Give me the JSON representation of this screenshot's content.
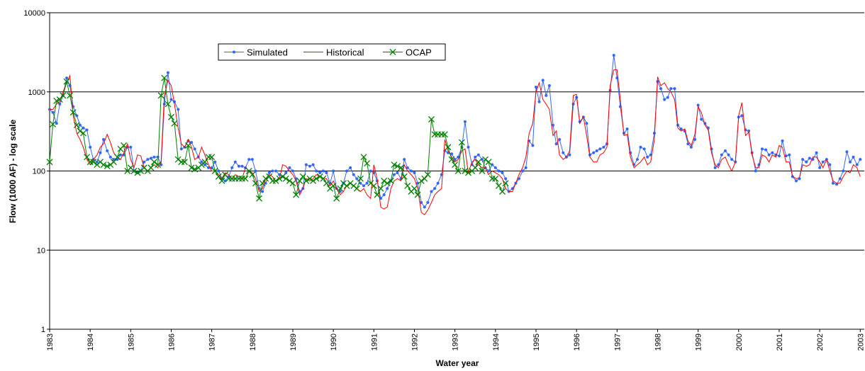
{
  "chart_data": {
    "type": "line",
    "y_label": "Flow (1000 AF) - log scale",
    "x_label": "Water year",
    "log_y": true,
    "grid": true,
    "legend": "top",
    "xlim": [
      1983,
      2003.1
    ],
    "xticks": [
      1983,
      1984,
      1985,
      1986,
      1987,
      1988,
      1989,
      1990,
      1991,
      1992,
      1993,
      1994,
      1995,
      1996,
      1997,
      1998,
      1999,
      2000,
      2001,
      2002,
      2003
    ],
    "ylim": [
      1,
      10000
    ],
    "yticks": [
      1,
      10,
      100,
      1000,
      10000
    ],
    "x": [
      1983,
      1983.08,
      1983.17,
      1983.25,
      1983.33,
      1983.42,
      1983.5,
      1983.58,
      1983.67,
      1983.75,
      1983.83,
      1983.92,
      1984,
      1984.08,
      1984.17,
      1984.25,
      1984.33,
      1984.42,
      1984.5,
      1984.58,
      1984.67,
      1984.75,
      1984.83,
      1984.92,
      1985,
      1985.08,
      1985.17,
      1985.25,
      1985.33,
      1985.42,
      1985.5,
      1985.58,
      1985.67,
      1985.75,
      1985.83,
      1985.92,
      1986,
      1986.08,
      1986.17,
      1986.25,
      1986.33,
      1986.42,
      1986.5,
      1986.58,
      1986.67,
      1986.75,
      1986.83,
      1986.92,
      1987,
      1987.08,
      1987.17,
      1987.25,
      1987.33,
      1987.42,
      1987.5,
      1987.58,
      1987.67,
      1987.75,
      1987.83,
      1987.92,
      1988,
      1988.08,
      1988.17,
      1988.25,
      1988.33,
      1988.42,
      1988.5,
      1988.58,
      1988.67,
      1988.75,
      1988.83,
      1988.92,
      1989,
      1989.08,
      1989.17,
      1989.25,
      1989.33,
      1989.42,
      1989.5,
      1989.58,
      1989.67,
      1989.75,
      1989.83,
      1989.92,
      1990,
      1990.08,
      1990.17,
      1990.25,
      1990.33,
      1990.42,
      1990.5,
      1990.58,
      1990.67,
      1990.75,
      1990.83,
      1990.92,
      1991,
      1991.08,
      1991.17,
      1991.25,
      1991.33,
      1991.42,
      1991.5,
      1991.58,
      1991.67,
      1991.75,
      1991.83,
      1991.92,
      1992,
      1992.08,
      1992.17,
      1992.25,
      1992.33,
      1992.42,
      1992.5,
      1992.58,
      1992.67,
      1992.75,
      1992.83,
      1992.92,
      1993,
      1993.08,
      1993.17,
      1993.25,
      1993.33,
      1993.42,
      1993.5,
      1993.58,
      1993.67,
      1993.75,
      1993.83,
      1993.92,
      1994,
      1994.08,
      1994.17,
      1994.25,
      1994.33,
      1994.42,
      1994.5,
      1994.58,
      1994.67,
      1994.75,
      1994.83,
      1994.92,
      1995,
      1995.08,
      1995.17,
      1995.25,
      1995.33,
      1995.42,
      1995.5,
      1995.58,
      1995.67,
      1995.75,
      1995.83,
      1995.92,
      1996,
      1996.08,
      1996.17,
      1996.25,
      1996.33,
      1996.42,
      1996.5,
      1996.58,
      1996.67,
      1996.75,
      1996.83,
      1996.92,
      1997,
      1997.08,
      1997.17,
      1997.25,
      1997.33,
      1997.42,
      1997.5,
      1997.58,
      1997.67,
      1997.75,
      1997.83,
      1997.92,
      1998,
      1998.08,
      1998.17,
      1998.25,
      1998.33,
      1998.42,
      1998.5,
      1998.58,
      1998.67,
      1998.75,
      1998.83,
      1998.92,
      1999,
      1999.08,
      1999.17,
      1999.25,
      1999.33,
      1999.42,
      1999.5,
      1999.58,
      1999.67,
      1999.75,
      1999.83,
      1999.92,
      2000,
      2000.08,
      2000.17,
      2000.25,
      2000.33,
      2000.42,
      2000.5,
      2000.58,
      2000.67,
      2000.75,
      2000.83,
      2000.92,
      2001,
      2001.08,
      2001.17,
      2001.25,
      2001.33,
      2001.42,
      2001.5,
      2001.58,
      2001.67,
      2001.75,
      2001.83,
      2001.92,
      2002,
      2002.08,
      2002.17,
      2002.25,
      2002.33,
      2002.42,
      2002.5,
      2002.58,
      2002.67,
      2002.75,
      2002.83,
      2002.92,
      2003
    ],
    "series": [
      {
        "name": "Simulated",
        "color": "#3366ff",
        "marker": "circle",
        "values": [
          600,
          550,
          400,
          700,
          900,
          1500,
          1200,
          650,
          500,
          380,
          350,
          330,
          200,
          140,
          130,
          170,
          250,
          180,
          150,
          140,
          140,
          160,
          160,
          200,
          200,
          100,
          95,
          100,
          130,
          140,
          145,
          150,
          150,
          120,
          700,
          1750,
          800,
          750,
          600,
          190,
          200,
          240,
          230,
          190,
          150,
          130,
          120,
          110,
          110,
          130,
          100,
          80,
          75,
          85,
          110,
          130,
          115,
          115,
          110,
          140,
          140,
          100,
          60,
          55,
          70,
          95,
          100,
          100,
          90,
          85,
          95,
          110,
          100,
          80,
          55,
          60,
          120,
          115,
          120,
          100,
          95,
          100,
          95,
          70,
          100,
          60,
          55,
          70,
          100,
          110,
          90,
          80,
          70,
          65,
          70,
          100,
          95,
          75,
          45,
          50,
          60,
          75,
          90,
          95,
          80,
          140,
          110,
          100,
          95,
          70,
          40,
          35,
          40,
          55,
          60,
          70,
          90,
          180,
          170,
          165,
          140,
          150,
          200,
          420,
          200,
          120,
          150,
          160,
          140,
          110,
          100,
          120,
          110,
          100,
          95,
          80,
          55,
          60,
          70,
          80,
          100,
          110,
          240,
          210,
          1150,
          750,
          1400,
          900,
          1200,
          380,
          220,
          250,
          170,
          150,
          160,
          700,
          850,
          420,
          480,
          400,
          160,
          170,
          180,
          190,
          200,
          220,
          1050,
          2900,
          1500,
          650,
          300,
          340,
          170,
          120,
          140,
          200,
          190,
          150,
          160,
          300,
          1350,
          1100,
          800,
          850,
          1100,
          1100,
          380,
          340,
          320,
          220,
          200,
          250,
          680,
          450,
          400,
          350,
          190,
          110,
          120,
          160,
          180,
          160,
          140,
          130,
          480,
          500,
          330,
          320,
          170,
          100,
          120,
          190,
          185,
          160,
          170,
          160,
          155,
          240,
          155,
          160,
          85,
          75,
          80,
          140,
          130,
          145,
          140,
          170,
          110,
          130,
          140,
          120,
          70,
          68,
          80,
          100,
          175,
          130,
          150,
          120,
          140
        ]
      },
      {
        "name": "Historical",
        "color": "#ff0000",
        "marker": "none",
        "values": [
          600,
          600,
          700,
          750,
          1000,
          1300,
          1600,
          500,
          300,
          250,
          200,
          140,
          120,
          140,
          160,
          200,
          220,
          290,
          230,
          170,
          150,
          140,
          170,
          220,
          140,
          110,
          160,
          155,
          110,
          100,
          110,
          120,
          110,
          130,
          900,
          1400,
          1200,
          700,
          350,
          220,
          200,
          250,
          200,
          140,
          150,
          200,
          160,
          120,
          100,
          100,
          90,
          80,
          95,
          90,
          80,
          90,
          85,
          80,
          110,
          100,
          95,
          80,
          55,
          60,
          80,
          90,
          85,
          75,
          80,
          120,
          115,
          100,
          90,
          75,
          50,
          60,
          80,
          75,
          80,
          90,
          85,
          80,
          80,
          65,
          75,
          60,
          50,
          55,
          65,
          70,
          65,
          60,
          55,
          60,
          50,
          45,
          120,
          80,
          35,
          33,
          35,
          60,
          75,
          80,
          75,
          120,
          100,
          90,
          80,
          60,
          30,
          28,
          32,
          40,
          50,
          55,
          60,
          250,
          180,
          150,
          130,
          140,
          180,
          190,
          95,
          130,
          140,
          120,
          110,
          110,
          90,
          100,
          95,
          90,
          80,
          60,
          55,
          55,
          70,
          90,
          110,
          150,
          300,
          400,
          1000,
          1300,
          800,
          700,
          600,
          280,
          320,
          160,
          140,
          150,
          180,
          900,
          930,
          400,
          480,
          280,
          150,
          130,
          130,
          160,
          170,
          200,
          1200,
          1900,
          1900,
          800,
          280,
          290,
          150,
          110,
          120,
          130,
          150,
          120,
          130,
          250,
          1550,
          1200,
          1300,
          1100,
          1000,
          800,
          350,
          320,
          340,
          240,
          210,
          290,
          650,
          550,
          380,
          330,
          170,
          120,
          110,
          140,
          150,
          120,
          100,
          130,
          500,
          730,
          280,
          310,
          160,
          110,
          110,
          160,
          150,
          130,
          160,
          150,
          210,
          200,
          130,
          130,
          85,
          80,
          82,
          120,
          115,
          120,
          150,
          150,
          130,
          110,
          140,
          100,
          75,
          70,
          70,
          85,
          100,
          95,
          120,
          110,
          85
        ]
      },
      {
        "name": "OCAP",
        "color": "#008000",
        "marker": "x",
        "values": [
          130,
          390,
          770,
          800,
          900,
          1350,
          900,
          550,
          380,
          320,
          300,
          150,
          130,
          130,
          120,
          130,
          120,
          115,
          120,
          130,
          150,
          190,
          210,
          100,
          110,
          100,
          95,
          100,
          110,
          100,
          110,
          130,
          120,
          900,
          1500,
          700,
          480,
          400,
          140,
          130,
          130,
          210,
          110,
          105,
          110,
          120,
          130,
          150,
          150,
          100,
          85,
          75,
          90,
          80,
          80,
          80,
          80,
          80,
          80,
          100,
          90,
          70,
          45,
          70,
          80,
          85,
          75,
          75,
          80,
          85,
          80,
          75,
          70,
          50,
          75,
          85,
          75,
          80,
          75,
          80,
          85,
          80,
          70,
          60,
          65,
          45,
          60,
          70,
          65,
          70,
          65,
          60,
          80,
          150,
          125,
          70,
          65,
          50,
          60,
          75,
          70,
          75,
          120,
          115,
          110,
          85,
          65,
          55,
          60,
          50,
          75,
          80,
          90,
          450,
          290,
          290,
          290,
          290,
          200,
          140,
          120,
          100,
          230,
          100,
          95,
          100,
          110,
          130,
          100,
          140,
          130,
          80,
          80,
          65,
          55,
          70,
          null,
          null,
          null,
          null,
          null,
          null,
          null,
          null,
          null,
          null,
          null,
          null,
          null,
          null,
          null,
          null,
          null,
          null,
          null,
          null,
          null,
          null,
          null,
          null,
          null,
          null,
          null,
          null,
          null,
          null,
          null,
          null,
          null,
          null,
          null,
          null,
          null,
          null,
          null,
          null,
          null,
          null,
          null,
          null,
          null,
          null,
          null,
          null,
          null,
          null,
          null,
          null,
          null,
          null,
          null,
          null,
          null,
          null,
          null,
          null,
          null,
          null,
          null,
          null,
          null,
          null,
          null,
          null,
          null,
          null,
          null,
          null,
          null,
          null,
          null,
          null,
          null,
          null,
          null,
          null,
          null,
          null,
          null,
          null,
          null,
          null,
          null,
          null,
          null,
          null,
          null,
          null,
          null,
          null,
          null,
          null,
          null,
          null,
          null,
          null,
          null,
          null,
          null,
          null,
          null
        ]
      }
    ]
  }
}
